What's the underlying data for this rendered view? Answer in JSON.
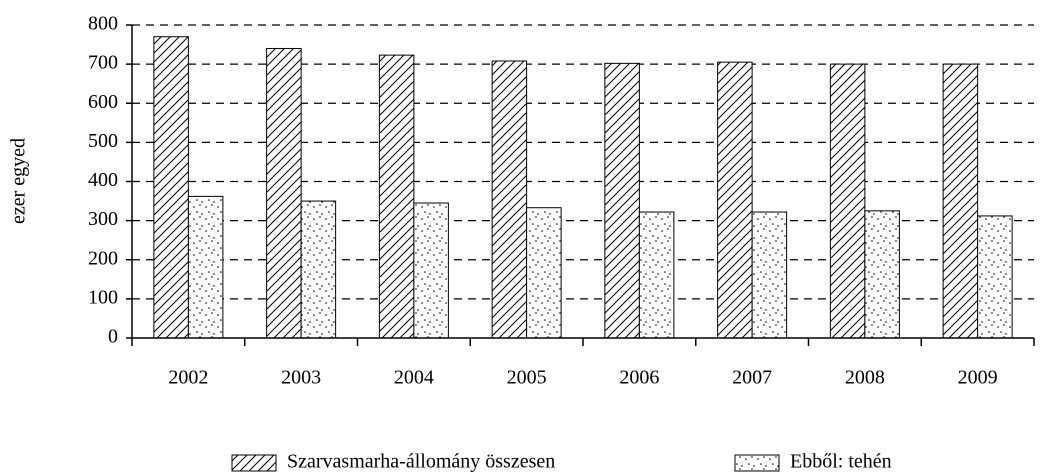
{
  "chart_data": {
    "type": "bar",
    "y_label": "ezer egyed",
    "categories": [
      "2002",
      "2003",
      "2004",
      "2005",
      "2006",
      "2007",
      "2008",
      "2009"
    ],
    "series": [
      {
        "name": "Szarvasmarha-állomány összesen",
        "color": "#000000",
        "pattern": "hatch",
        "values": [
          770,
          740,
          723,
          708,
          702,
          705,
          700,
          700
        ]
      },
      {
        "name": "Ebből: tehén",
        "color": "#000000",
        "pattern": "dots",
        "values": [
          362,
          350,
          345,
          333,
          322,
          322,
          325,
          312
        ]
      }
    ],
    "ylim": [
      0,
      800
    ],
    "yticks": [
      0,
      100,
      200,
      300,
      400,
      500,
      600,
      700,
      800
    ],
    "grid": true,
    "legend": "bottom"
  }
}
